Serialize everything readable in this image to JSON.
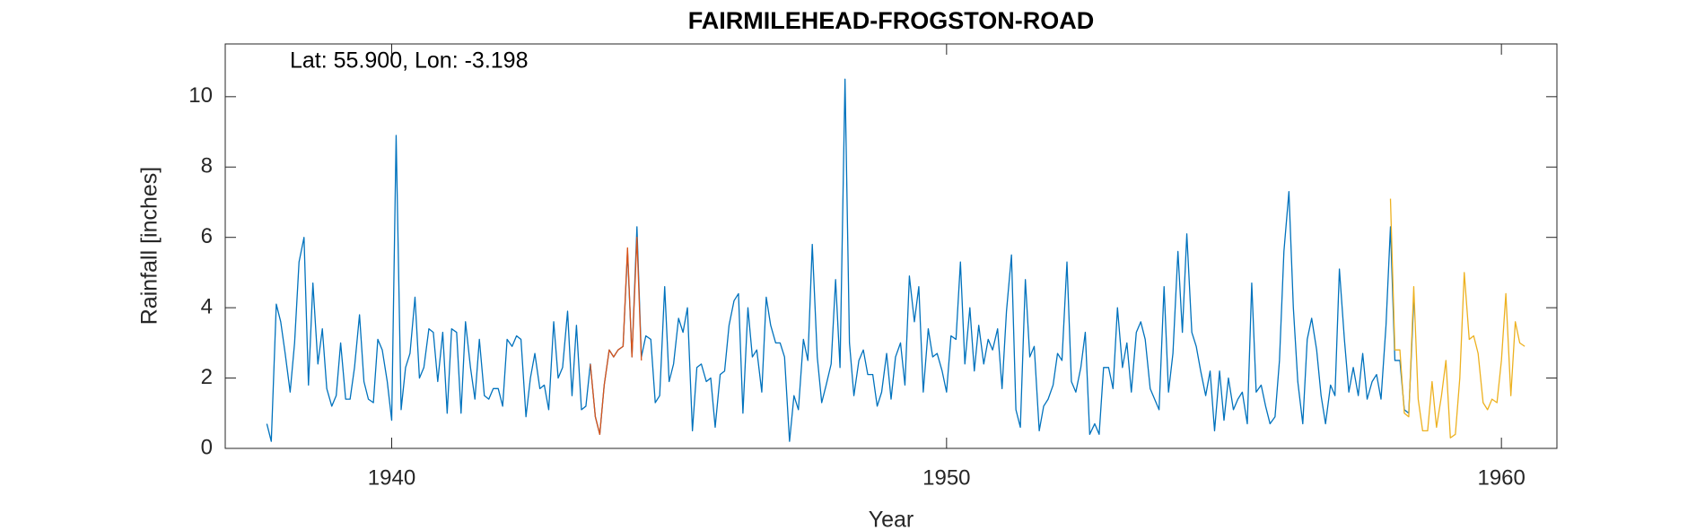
{
  "chart_data": {
    "type": "line",
    "title": "FAIRMILEHEAD-FROGSTON-ROAD",
    "annotation": "Lat: 55.900, Lon: -3.198",
    "xlabel": "Year",
    "ylabel": "Rainfall [inches]",
    "xlim": [
      1937,
      1961
    ],
    "xticks": [
      1940,
      1950,
      1960
    ],
    "ylim": [
      0,
      11.5
    ],
    "yticks": [
      0,
      2,
      4,
      6,
      8,
      10
    ],
    "series": [
      {
        "color": "#0072BD",
        "x": [
          1937.75,
          1937.83,
          1937.92,
          1938.0,
          1938.08,
          1938.17,
          1938.25,
          1938.33,
          1938.42,
          1938.5,
          1938.58,
          1938.67,
          1938.75,
          1938.83,
          1938.92,
          1939.0,
          1939.08,
          1939.17,
          1939.25,
          1939.33,
          1939.42,
          1939.5,
          1939.58,
          1939.67,
          1939.75,
          1939.83,
          1939.92,
          1940.0,
          1940.08,
          1940.17,
          1940.25,
          1940.33,
          1940.42,
          1940.5,
          1940.58,
          1940.67,
          1940.75,
          1940.83,
          1940.92,
          1941.0,
          1941.08,
          1941.17,
          1941.25,
          1941.33,
          1941.42,
          1941.5,
          1941.58,
          1941.67,
          1941.75,
          1941.83,
          1941.92,
          1942.0,
          1942.08,
          1942.17,
          1942.25,
          1942.33,
          1942.42,
          1942.5,
          1942.58,
          1942.67,
          1942.75,
          1942.83,
          1942.92,
          1943.0,
          1943.08,
          1943.17,
          1943.25,
          1943.33,
          1943.42,
          1943.5,
          1943.58,
          1943.67,
          1943.75,
          1943.83,
          1943.92,
          1944.0,
          1944.08,
          1944.17,
          1944.25,
          1944.33,
          1944.42,
          1944.5,
          1944.58,
          1944.67,
          1944.75,
          1944.83,
          1944.92,
          1945.0,
          1945.08,
          1945.17,
          1945.25,
          1945.33,
          1945.42,
          1945.5,
          1945.58,
          1945.67,
          1945.75,
          1945.83,
          1945.92,
          1946.0,
          1946.08,
          1946.17,
          1946.25,
          1946.33,
          1946.42,
          1946.5,
          1946.58,
          1946.67,
          1946.75,
          1946.83,
          1946.92,
          1947.0,
          1947.08,
          1947.17,
          1947.25,
          1947.33,
          1947.42,
          1947.5,
          1947.58,
          1947.67,
          1947.75,
          1947.83,
          1947.92,
          1948.0,
          1948.08,
          1948.17,
          1948.25,
          1948.33,
          1948.42,
          1948.5,
          1948.58,
          1948.67,
          1948.75,
          1948.83,
          1948.92,
          1949.0,
          1949.08,
          1949.17,
          1949.25,
          1949.33,
          1949.42,
          1949.5,
          1949.58,
          1949.67,
          1949.75,
          1949.83,
          1949.92,
          1950.0,
          1950.08,
          1950.17,
          1950.25,
          1950.33,
          1950.42,
          1950.5,
          1950.58,
          1950.67,
          1950.75,
          1950.83,
          1950.92,
          1951.0,
          1951.08,
          1951.17,
          1951.25,
          1951.33,
          1951.42,
          1951.5,
          1951.58,
          1951.67,
          1951.75,
          1951.83,
          1951.92,
          1952.0,
          1952.08,
          1952.17,
          1952.25,
          1952.33,
          1952.42,
          1952.5,
          1952.58,
          1952.67,
          1952.75,
          1952.83,
          1952.92,
          1953.0,
          1953.08,
          1953.17,
          1953.25,
          1953.33,
          1953.42,
          1953.5,
          1953.58,
          1953.67,
          1953.75,
          1953.83,
          1953.92,
          1954.0,
          1954.08,
          1954.17,
          1954.25,
          1954.33,
          1954.42,
          1954.5,
          1954.58,
          1954.67,
          1954.75,
          1954.83,
          1954.92,
          1955.0,
          1955.08,
          1955.17,
          1955.25,
          1955.33,
          1955.42,
          1955.5,
          1955.58,
          1955.67,
          1955.75,
          1955.83,
          1955.92,
          1956.0,
          1956.08,
          1956.17,
          1956.25,
          1956.33,
          1956.42,
          1956.5,
          1956.58,
          1956.67,
          1956.75,
          1956.83,
          1956.92,
          1957.0,
          1957.08,
          1957.17,
          1957.25,
          1957.33,
          1957.42,
          1957.5,
          1957.58,
          1957.67,
          1957.75,
          1957.83,
          1957.92,
          1958.0,
          1958.08,
          1958.17,
          1958.25,
          1958.33,
          1958.42
        ],
        "values": [
          0.7,
          0.2,
          4.1,
          3.6,
          2.7,
          1.6,
          3.0,
          5.3,
          6.0,
          1.8,
          4.7,
          2.4,
          3.4,
          1.7,
          1.2,
          1.5,
          3.0,
          1.4,
          1.4,
          2.3,
          3.8,
          1.9,
          1.4,
          1.3,
          3.1,
          2.8,
          1.9,
          0.8,
          8.9,
          1.1,
          2.3,
          2.7,
          4.3,
          2.0,
          2.3,
          3.4,
          3.3,
          1.9,
          3.3,
          1.0,
          3.4,
          3.3,
          1.0,
          3.6,
          2.3,
          1.4,
          3.1,
          1.5,
          1.4,
          1.7,
          1.7,
          1.2,
          3.1,
          2.9,
          3.2,
          3.1,
          0.9,
          2.0,
          2.7,
          1.7,
          1.8,
          1.1,
          3.6,
          2.0,
          2.3,
          3.9,
          1.5,
          3.5,
          1.1,
          1.2,
          2.4,
          0.9,
          0.4,
          1.8,
          2.8,
          2.6,
          2.8,
          2.9,
          5.6,
          2.6,
          6.3,
          2.6,
          3.2,
          3.1,
          1.3,
          1.5,
          4.6,
          1.9,
          2.4,
          3.7,
          3.3,
          4.0,
          0.5,
          2.3,
          2.4,
          1.9,
          2.0,
          0.6,
          2.1,
          2.2,
          3.5,
          4.2,
          4.4,
          1.0,
          4.0,
          2.6,
          2.8,
          1.6,
          4.3,
          3.5,
          3.0,
          3.0,
          2.6,
          0.2,
          1.5,
          1.1,
          3.1,
          2.5,
          5.8,
          2.6,
          1.3,
          1.8,
          2.4,
          4.8,
          2.3,
          10.5,
          3.0,
          1.5,
          2.5,
          2.8,
          2.1,
          2.1,
          1.2,
          1.6,
          2.7,
          1.4,
          2.6,
          3.0,
          1.8,
          4.9,
          3.6,
          4.6,
          1.6,
          3.4,
          2.6,
          2.7,
          2.2,
          1.6,
          3.2,
          3.1,
          5.3,
          2.4,
          4.0,
          2.2,
          3.5,
          2.4,
          3.1,
          2.8,
          3.4,
          1.7,
          3.9,
          5.5,
          1.1,
          0.6,
          4.8,
          2.6,
          2.9,
          0.5,
          1.2,
          1.4,
          1.8,
          2.7,
          2.5,
          5.3,
          1.9,
          1.6,
          2.3,
          3.3,
          0.4,
          0.7,
          0.4,
          2.3,
          2.3,
          1.7,
          4.0,
          2.3,
          3.0,
          1.6,
          3.3,
          3.6,
          3.1,
          1.7,
          1.4,
          1.1,
          4.6,
          1.6,
          2.7,
          5.6,
          3.3,
          6.1,
          3.3,
          2.9,
          2.2,
          1.5,
          2.2,
          0.5,
          2.2,
          0.8,
          2.0,
          1.1,
          1.4,
          1.6,
          0.7,
          4.7,
          1.6,
          1.8,
          1.2,
          0.7,
          0.9,
          2.5,
          5.6,
          7.3,
          4.0,
          1.9,
          0.7,
          3.1,
          3.7,
          2.8,
          1.5,
          0.7,
          1.8,
          1.5,
          5.1,
          3.1,
          1.6,
          2.3,
          1.5,
          2.7,
          1.4,
          1.9,
          2.1,
          1.4,
          3.5,
          6.3,
          2.5,
          2.5,
          1.1,
          1.0,
          4.2
        ]
      },
      {
        "color": "#D95319",
        "x": [
          1943.58,
          1943.67,
          1943.75,
          1943.83,
          1943.92,
          1944.0,
          1944.08,
          1944.17,
          1944.25,
          1944.33,
          1944.42,
          1944.5
        ],
        "values": [
          2.4,
          0.9,
          0.4,
          1.8,
          2.8,
          2.6,
          2.8,
          2.9,
          5.7,
          2.6,
          6.0,
          2.5
        ]
      },
      {
        "color": "#EDB120",
        "x": [
          1958.0,
          1958.08,
          1958.17,
          1958.25,
          1958.33,
          1958.42,
          1958.5,
          1958.58,
          1958.67,
          1958.75,
          1958.83,
          1958.92,
          1959.0,
          1959.08,
          1959.17,
          1959.25,
          1959.33,
          1959.42,
          1959.5,
          1959.58,
          1959.67,
          1959.75,
          1959.83,
          1959.92,
          1960.0,
          1960.08,
          1960.17,
          1960.25,
          1960.33,
          1960.42
        ],
        "values": [
          7.1,
          2.8,
          2.8,
          1.0,
          0.9,
          4.6,
          1.4,
          0.5,
          0.5,
          1.9,
          0.6,
          1.5,
          2.5,
          0.3,
          0.4,
          2.0,
          5.0,
          3.1,
          3.2,
          2.7,
          1.3,
          1.1,
          1.4,
          1.3,
          2.5,
          4.4,
          1.5,
          3.6,
          3.0,
          2.9
        ]
      }
    ]
  }
}
